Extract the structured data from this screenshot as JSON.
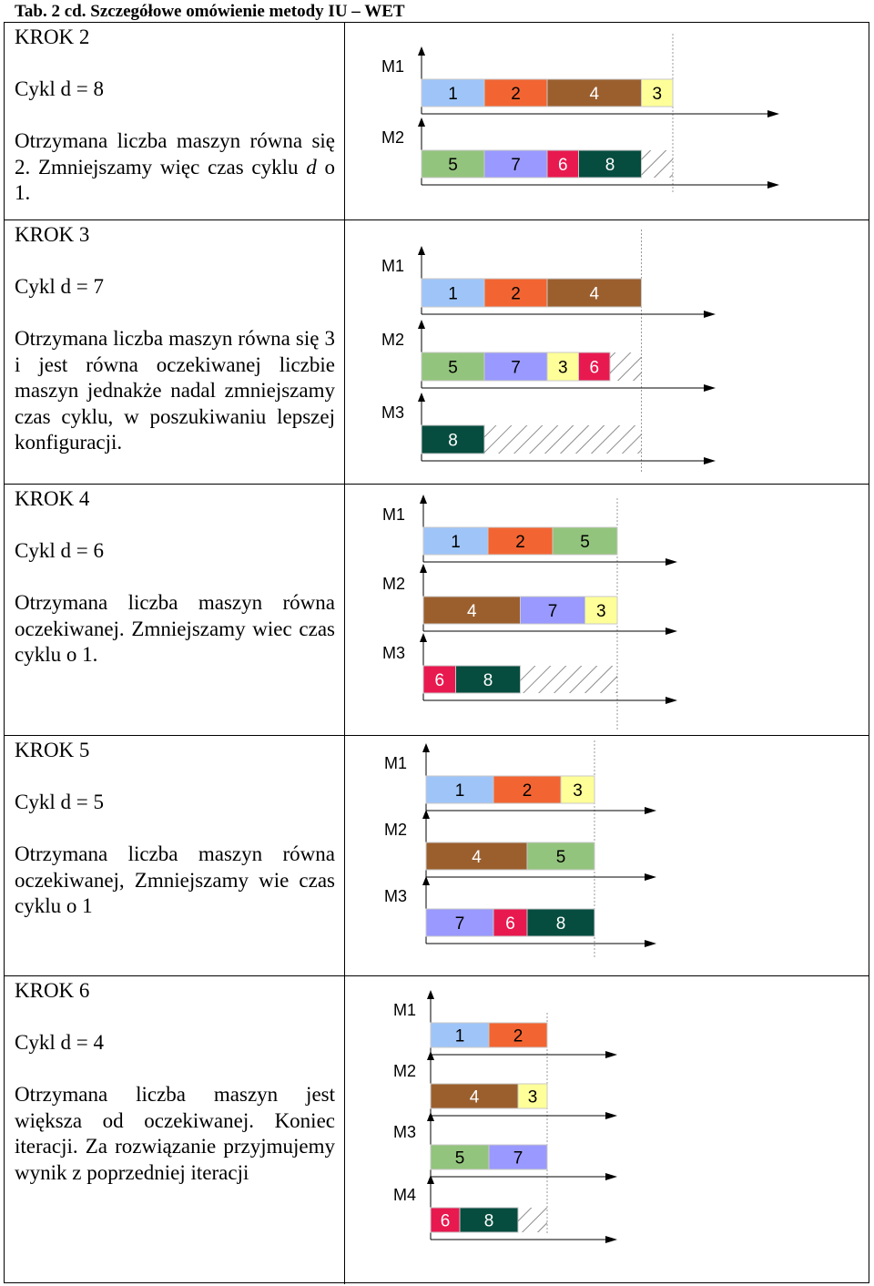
{
  "caption": "Tab. 2 cd. Szczegółowe omówienie metody IU – WET",
  "colors": {
    "1": "#9fc5f8",
    "2": "#f26532",
    "3": "#ffff99",
    "4": "#9b5f2e",
    "5": "#93c47d",
    "6": "#e8194f",
    "7": "#9999ff",
    "8": "#064d3f"
  },
  "steps": [
    {
      "title": "KROK 2",
      "cycle": "Cykl  d = 8",
      "desc_html": "Otrzymana liczba maszyn równa się 2. Zmniejszamy więc czas cyklu <i>d</i> o 1.",
      "machines": [
        {
          "label": "M1",
          "jobs": [
            {
              "id": "1",
              "len": 2
            },
            {
              "id": "2",
              "len": 2
            },
            {
              "id": "4",
              "len": 3
            },
            {
              "id": "3",
              "len": 1
            }
          ],
          "idle": 0
        },
        {
          "label": "M2",
          "jobs": [
            {
              "id": "5",
              "len": 2
            },
            {
              "id": "7",
              "len": 2
            },
            {
              "id": "6",
              "len": 1
            },
            {
              "id": "8",
              "len": 2
            }
          ],
          "idle": 1
        }
      ]
    },
    {
      "title": "KROK 3",
      "cycle": "Cykl d = 7",
      "desc_html": "Otrzymana liczba maszyn równa się 3 i jest równa oczekiwanej liczbie maszyn jednakże nadal zmniejszamy czas cyklu, w poszukiwaniu lepszej konfiguracji.",
      "machines": [
        {
          "label": "M1",
          "jobs": [
            {
              "id": "1",
              "len": 2
            },
            {
              "id": "2",
              "len": 2
            },
            {
              "id": "4",
              "len": 3
            }
          ],
          "idle": 0
        },
        {
          "label": "M2",
          "jobs": [
            {
              "id": "5",
              "len": 2
            },
            {
              "id": "7",
              "len": 2
            },
            {
              "id": "3",
              "len": 1
            },
            {
              "id": "6",
              "len": 1
            }
          ],
          "idle": 1
        },
        {
          "label": "M3",
          "jobs": [
            {
              "id": "8",
              "len": 2
            }
          ],
          "idle": 5
        }
      ]
    },
    {
      "title": "KROK 4",
      "cycle": "Cykl d = 6",
      "desc_html": "Otrzymana liczba maszyn równa oczekiwanej. Zmniejszamy wiec czas cyklu o 1.",
      "machines": [
        {
          "label": "M1",
          "jobs": [
            {
              "id": "1",
              "len": 2
            },
            {
              "id": "2",
              "len": 2
            },
            {
              "id": "5",
              "len": 2
            }
          ],
          "idle": 0
        },
        {
          "label": "M2",
          "jobs": [
            {
              "id": "4",
              "len": 3
            },
            {
              "id": "7",
              "len": 2
            },
            {
              "id": "3",
              "len": 1
            }
          ],
          "idle": 0
        },
        {
          "label": "M3",
          "jobs": [
            {
              "id": "6",
              "len": 1
            },
            {
              "id": "8",
              "len": 2
            }
          ],
          "idle": 3
        }
      ]
    },
    {
      "title": "KROK 5",
      "cycle": "Cykl d = 5",
      "desc_html": "Otrzymana liczba maszyn równa oczekiwanej, Zmniejszamy wie czas cyklu o 1",
      "machines": [
        {
          "label": "M1",
          "jobs": [
            {
              "id": "1",
              "len": 2
            },
            {
              "id": "2",
              "len": 2
            },
            {
              "id": "3",
              "len": 1
            }
          ],
          "idle": 0
        },
        {
          "label": "M2",
          "jobs": [
            {
              "id": "4",
              "len": 3
            },
            {
              "id": "5",
              "len": 2
            }
          ],
          "idle": 0
        },
        {
          "label": "M3",
          "jobs": [
            {
              "id": "7",
              "len": 2
            },
            {
              "id": "6",
              "len": 1
            },
            {
              "id": "8",
              "len": 2
            }
          ],
          "idle": 0
        }
      ]
    },
    {
      "title": "KROK 6",
      "cycle": "Cykl d = 4",
      "desc_html": "Otrzymana liczba maszyn jest większa od oczekiwanej. Koniec iteracji. Za rozwiązanie przyjmujemy wynik z poprzedniej iteracji",
      "machines": [
        {
          "label": "M1",
          "jobs": [
            {
              "id": "1",
              "len": 2
            },
            {
              "id": "2",
              "len": 2
            }
          ],
          "idle": 0
        },
        {
          "label": "M2",
          "jobs": [
            {
              "id": "4",
              "len": 3
            },
            {
              "id": "3",
              "len": 1
            }
          ],
          "idle": 0
        },
        {
          "label": "M3",
          "jobs": [
            {
              "id": "5",
              "len": 2
            },
            {
              "id": "7",
              "len": 2
            }
          ],
          "idle": 0
        },
        {
          "label": "M4",
          "jobs": [
            {
              "id": "6",
              "len": 1
            },
            {
              "id": "8",
              "len": 2
            }
          ],
          "idle": 1
        }
      ]
    }
  ]
}
